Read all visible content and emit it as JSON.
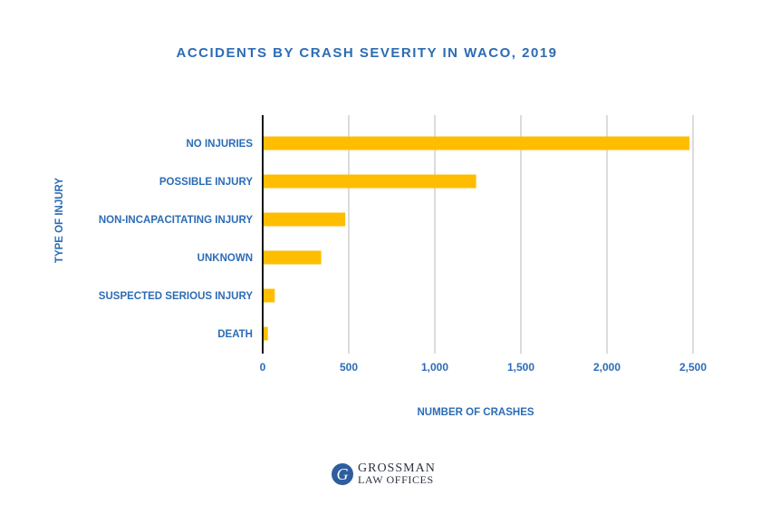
{
  "chart_data": {
    "type": "bar",
    "orientation": "horizontal",
    "title": "ACCIDENTS BY CRASH SEVERITY IN WACO, 2019",
    "xlabel": "NUMBER OF CRASHES",
    "ylabel": "TYPE OF INJURY",
    "categories": [
      "NO INJURIES",
      "POSSIBLE INJURY",
      "NON-INCAPACITATING INJURY",
      "UNKNOWN",
      "SUSPECTED SERIOUS INJURY",
      "DEATH"
    ],
    "values": [
      2480,
      1240,
      480,
      340,
      70,
      30
    ],
    "xlim": [
      0,
      2500
    ],
    "ticks": [
      0,
      500,
      1000,
      1500,
      2000,
      2500
    ],
    "tick_labels": [
      "0",
      "500",
      "1,000",
      "1,500",
      "2,000",
      "2,500"
    ],
    "grid": true,
    "legend": "none",
    "bar_color": "#ffbd00",
    "text_color": "#2c6cb5"
  },
  "logo": {
    "mark": "G",
    "line1": "GROSSMAN",
    "line2": "LAW OFFICES"
  }
}
